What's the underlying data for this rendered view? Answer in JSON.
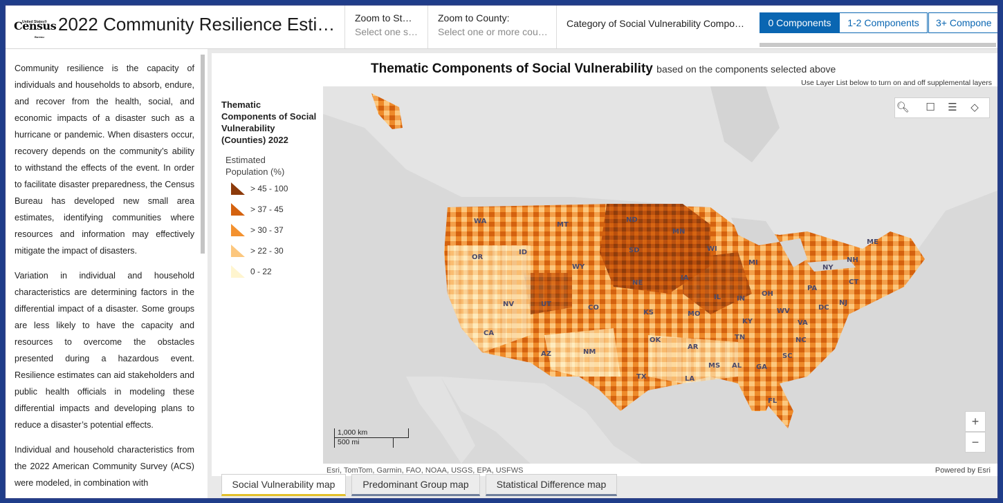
{
  "header": {
    "logo_text": "Census",
    "logo_small_top": "United States®",
    "logo_small_bottom": "Bureau",
    "title": "2022 Community Resilience Esti…",
    "zoom_state": {
      "label": "Zoom to St…",
      "placeholder": "Select one s…"
    },
    "zoom_county": {
      "label": "Zoom to County:",
      "placeholder": "Select one or more cou…"
    },
    "category_label": "Category of Social Vulnerability Compo…",
    "segments": [
      "0 Components",
      "1-2 Components",
      "3+ Compone"
    ]
  },
  "sidebar": {
    "paragraphs": [
      "Community resilience is the capacity of individuals and households to absorb, endure, and recover from the health, social, and economic impacts of a disaster such as a hurricane or pandemic.  When disasters occur, recovery depends on the community’s ability to withstand the effects of the event. In order to facilitate disaster preparedness, the Census Bureau has developed new small area estimates, identifying communities where resources and information may effectively mitigate the impact of disasters.",
      "Variation in individual and household characteristics are determining factors in the differential impact of a disaster. Some groups are less likely to have the capacity and resources to overcome the obstacles presented during a hazardous event.  Resilience estimates can aid stakeholders and public health officials in modeling these differential impacts and developing plans to reduce a disaster’s potential effects.",
      "Individual and household characteristics from the 2022 American Community Survey (ACS) were modeled, in combination with"
    ]
  },
  "map": {
    "title": "Thematic Components of Social Vulnerability",
    "subtitle": "based on the components selected above",
    "note": "Use Layer List below to turn on and off supplemental layers",
    "legend_title": "Thematic Components of Social Vulnerability (Counties) 2022",
    "legend_subtitle": "Estimated Population (%)",
    "legend": [
      {
        "label": "> 45 - 100",
        "color": "#8c3a0a"
      },
      {
        "label": "> 37 - 45",
        "color": "#d4620f"
      },
      {
        "label": "> 30 - 37",
        "color": "#f3912f"
      },
      {
        "label": "> 22 - 30",
        "color": "#fcc77e"
      },
      {
        "label": "0 - 22",
        "color": "#fff5cf"
      }
    ],
    "tools": [
      "search-icon",
      "bookmark-icon",
      "legend-icon",
      "layers-icon"
    ],
    "zoom_in": "+",
    "zoom_out": "−",
    "scale_km": "1,000 km",
    "scale_mi": "500 mi",
    "attribution": "Esri, TomTom, Garmin, FAO, NOAA, USGS, EPA, USFWS",
    "powered": "Powered by Esri",
    "states": [
      "WA",
      "MT",
      "ND",
      "MN",
      "OR",
      "ID",
      "SD",
      "WI",
      "MI",
      "WY",
      "NE",
      "IA",
      "NV",
      "UT",
      "CO",
      "IL",
      "IN",
      "OH",
      "PA",
      "NY",
      "CA",
      "KS",
      "MO",
      "KY",
      "WV",
      "VA",
      "NJ",
      "CT",
      "NH",
      "ME",
      "AZ",
      "NM",
      "OK",
      "AR",
      "TN",
      "NC",
      "SC",
      "MS",
      "AL",
      "GA",
      "TX",
      "LA",
      "FL",
      "DC"
    ]
  },
  "tabs": [
    "Social Vulnerability map",
    "Predominant Group map",
    "Statistical Difference map"
  ]
}
